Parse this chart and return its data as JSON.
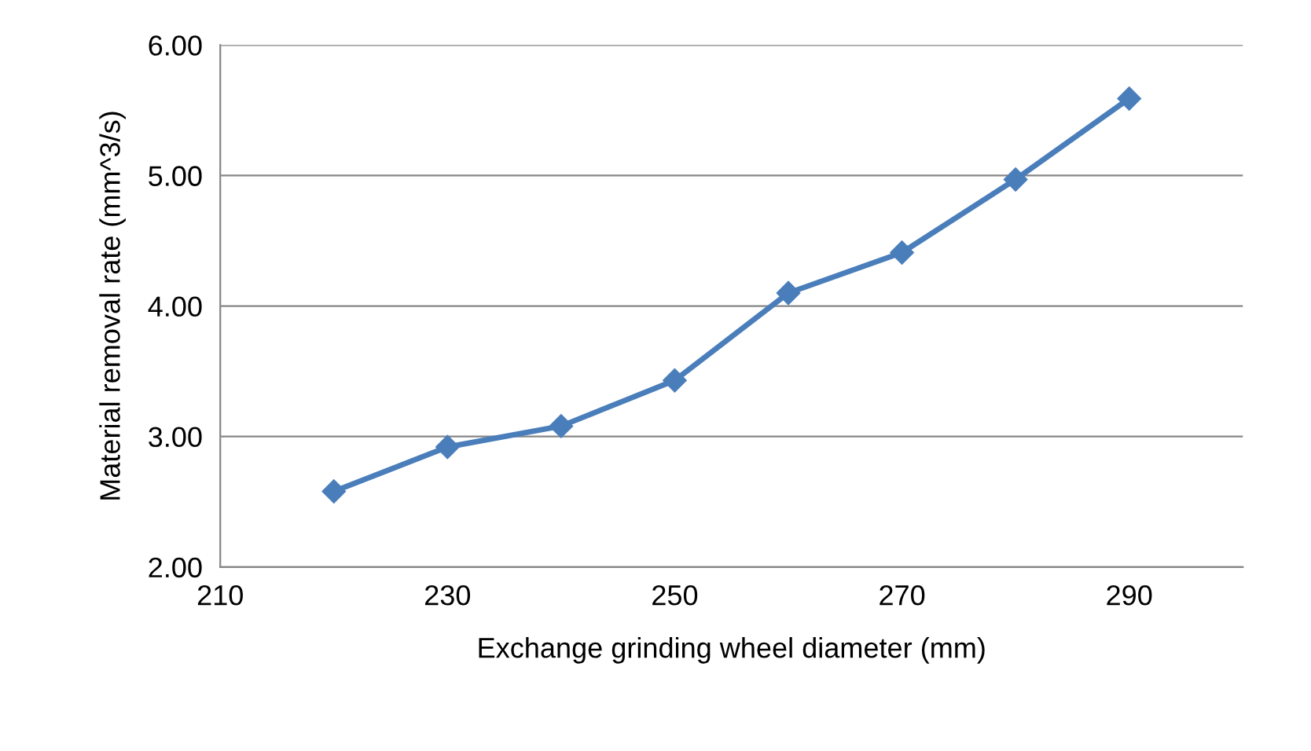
{
  "chart_data": {
    "type": "line",
    "xlabel": "Exchange grinding wheel diameter (mm)",
    "ylabel": "Material removal rate (mm^3/s)",
    "x": [
      220,
      230,
      240,
      250,
      260,
      270,
      280,
      290
    ],
    "series": [
      {
        "color": "#4a7ebb",
        "values": [
          2.58,
          2.92,
          3.08,
          3.43,
          4.1,
          4.41,
          4.97,
          5.59
        ]
      }
    ],
    "xlim": [
      210,
      300
    ],
    "xticks": [
      210,
      230,
      250,
      270,
      290
    ],
    "ylim": [
      2,
      6
    ],
    "yticks": [
      {
        "value": 2,
        "label": "2.00"
      },
      {
        "value": 3,
        "label": "3.00"
      },
      {
        "value": 4,
        "label": "4.00"
      },
      {
        "value": 5,
        "label": "5.00"
      },
      {
        "value": 6,
        "label": "6.00"
      }
    ],
    "grid": "y",
    "marker": "diamond",
    "line_style": "solid",
    "legend": false
  }
}
